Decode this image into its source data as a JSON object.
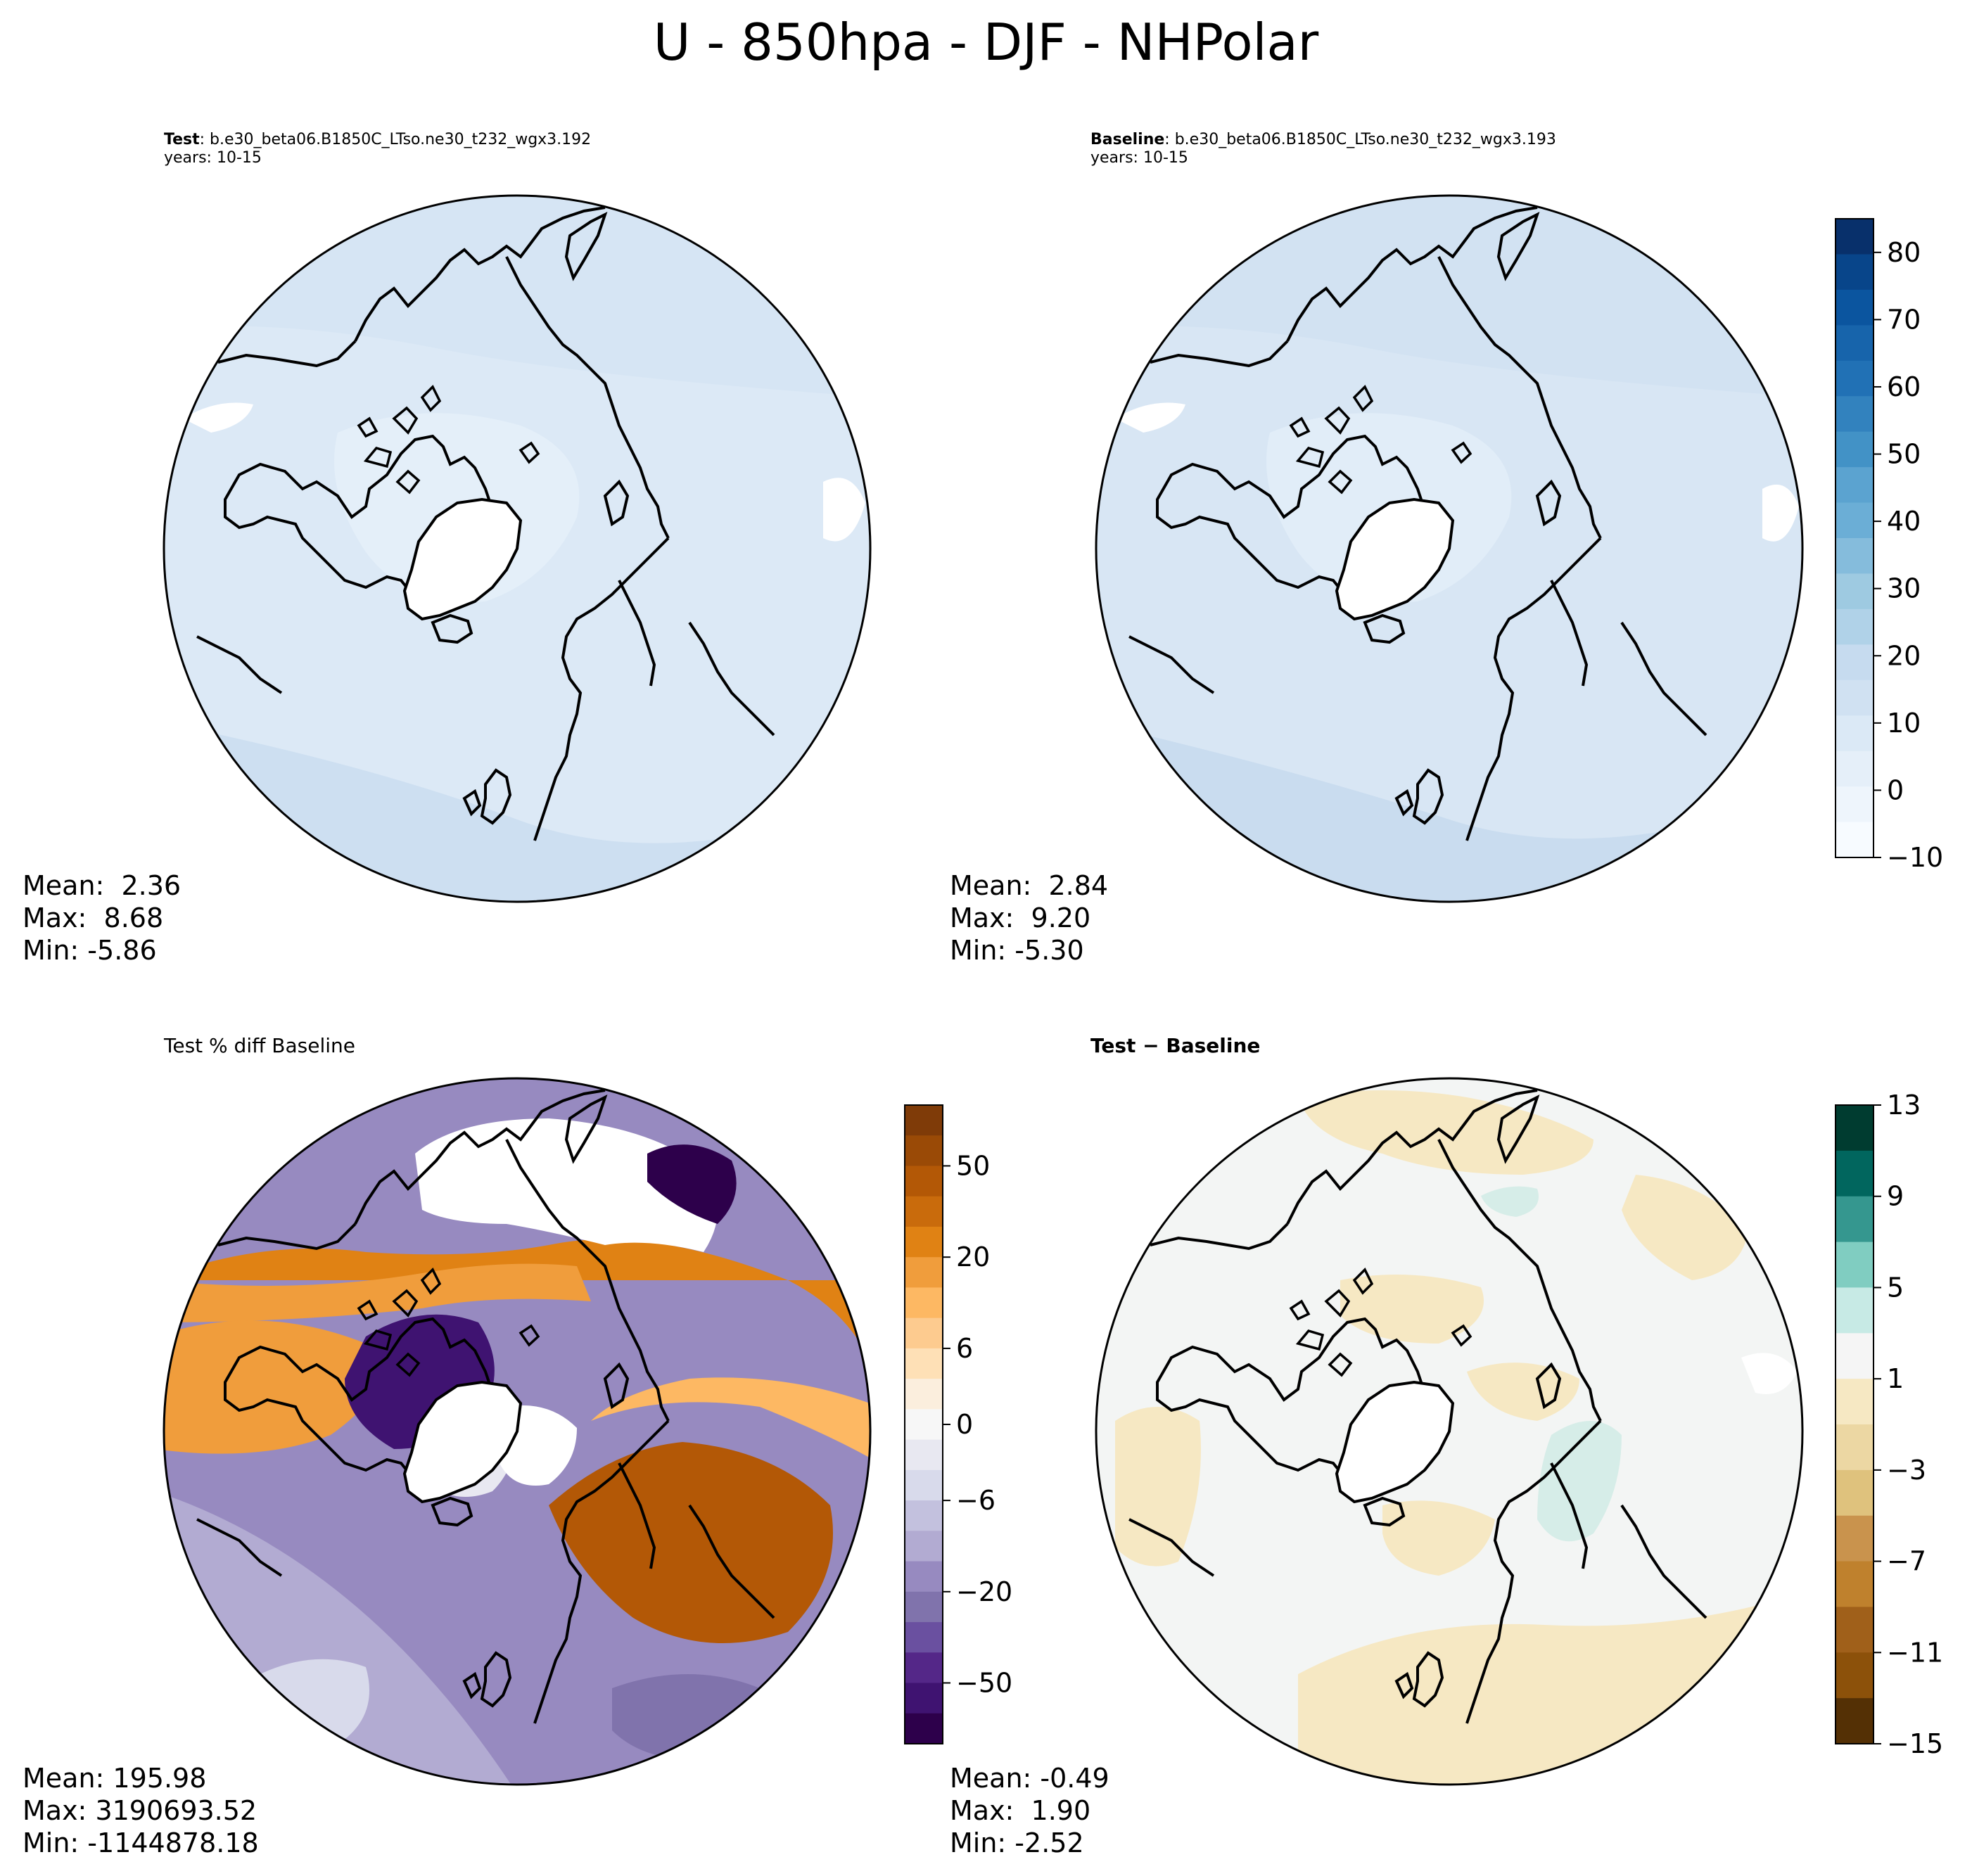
{
  "title": "U - 850hpa - DJF - NHPolar",
  "panels": {
    "test": {
      "label_bold": "Test",
      "label_rest": ": b.e30_beta06.B1850C_LTso.ne30_t232_wgx3.192",
      "years": "years: 10-15",
      "stats": {
        "mean": "Mean:  2.36",
        "max": "Max:  8.68",
        "min": "Min: -5.86"
      }
    },
    "baseline": {
      "label_bold": "Baseline",
      "label_rest": ": b.e30_beta06.B1850C_LTso.ne30_t232_wgx3.193",
      "years": "years: 10-15",
      "stats": {
        "mean": "Mean:  2.84",
        "max": "Max:  9.20",
        "min": "Min: -5.30"
      }
    },
    "pctdiff": {
      "title": "Test % diff Baseline",
      "stats": {
        "mean": "Mean: 195.98",
        "max": "Max: 3190693.52",
        "min": "Min: -1144878.18"
      }
    },
    "diff": {
      "title": "Test − Baseline",
      "stats": {
        "mean": "Mean: -0.49",
        "max": "Max:  1.90",
        "min": "Min: -2.52"
      }
    }
  },
  "colorbars": {
    "abs": {
      "ticks": [
        "80",
        "70",
        "60",
        "50",
        "40",
        "30",
        "20",
        "10",
        "0",
        "−10"
      ],
      "colors": [
        "#08306b",
        "#08458a",
        "#0b559f",
        "#1764ab",
        "#2171b5",
        "#3282be",
        "#4292c6",
        "#5ba3d0",
        "#6baed6",
        "#85bcdc",
        "#9ecae1",
        "#b0d2e8",
        "#c6dbef",
        "#d0e1f2",
        "#dbe9f6",
        "#e5eff9",
        "#eef5fc",
        "#f7fbff"
      ]
    },
    "pct": {
      "ticks": [
        "50",
        "20",
        "6",
        "0",
        "−6",
        "−20",
        "−50"
      ],
      "colors": [
        "#7f3b08",
        "#9a4a06",
        "#b35806",
        "#c96b0c",
        "#e08214",
        "#f09d3c",
        "#fdb863",
        "#fdcb8f",
        "#fee0b6",
        "#fbeedd",
        "#f7f7f7",
        "#e8e8f1",
        "#d8daeb",
        "#c3c1de",
        "#b2abd2",
        "#978ac0",
        "#8073ac",
        "#6a50a0",
        "#542788",
        "#3f1371",
        "#2d004b"
      ]
    },
    "diff": {
      "ticks": [
        "13",
        "9",
        "5",
        "1",
        "−3",
        "−7",
        "−11",
        "−15"
      ],
      "colors": [
        "#003c30",
        "#01665e",
        "#35978f",
        "#80cdc1",
        "#c7eae5",
        "#f5f5f5",
        "#f6e8c3",
        "#ecd7a3",
        "#dfc27d",
        "#c9934d",
        "#bf812d",
        "#a0601a",
        "#8c510a",
        "#543005"
      ]
    }
  },
  "map_colors": {
    "abs_low": "#e4eff9",
    "abs_mid": "#d8e6f4",
    "abs_high": "#c9dcef",
    "coast": "#000000"
  }
}
